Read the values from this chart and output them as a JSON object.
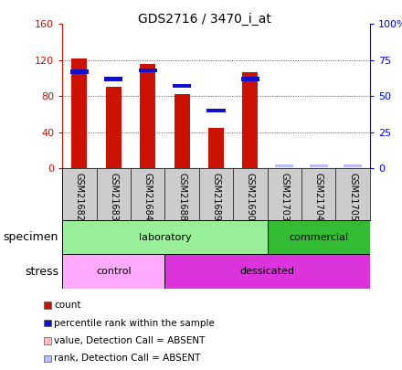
{
  "title": "GDS2716 / 3470_i_at",
  "samples": [
    "GSM21682",
    "GSM21683",
    "GSM21684",
    "GSM21688",
    "GSM21689",
    "GSM21690",
    "GSM21703",
    "GSM21704",
    "GSM21705"
  ],
  "count_values": [
    122,
    90,
    116,
    82,
    45,
    107,
    0,
    0,
    0
  ],
  "rank_values": [
    67,
    62,
    68,
    57,
    40,
    62,
    0,
    0,
    0
  ],
  "absent_rank_values": [
    0,
    0,
    0,
    0,
    0,
    0,
    2,
    2,
    2
  ],
  "bar_width": 0.45,
  "ylim_left": [
    0,
    160
  ],
  "ylim_right": [
    0,
    100
  ],
  "yticks_left": [
    0,
    40,
    80,
    120,
    160
  ],
  "yticks_right": [
    0,
    25,
    50,
    75,
    100
  ],
  "ytick_labels_right": [
    "0",
    "25",
    "50",
    "75",
    "100%"
  ],
  "count_color": "#cc1100",
  "rank_color": "#1111cc",
  "absent_value_color": "#ffbbbb",
  "absent_rank_color": "#bbbbff",
  "specimen_groups": [
    {
      "label": "laboratory",
      "start": 0,
      "end": 6,
      "color": "#99ee99"
    },
    {
      "label": "commercial",
      "start": 6,
      "end": 9,
      "color": "#33bb33"
    }
  ],
  "stress_groups": [
    {
      "label": "control",
      "start": 0,
      "end": 3,
      "color": "#ffaaff"
    },
    {
      "label": "dessicated",
      "start": 3,
      "end": 9,
      "color": "#dd33dd"
    }
  ],
  "grid_color": "#555555",
  "bg_color": "#ffffff",
  "tick_bg_color": "#cccccc",
  "specimen_label": "specimen",
  "stress_label": "stress",
  "legend_items": [
    [
      "#cc1100",
      "count"
    ],
    [
      "#1111cc",
      "percentile rank within the sample"
    ],
    [
      "#ffbbbb",
      "value, Detection Call = ABSENT"
    ],
    [
      "#bbbbff",
      "rank, Detection Call = ABSENT"
    ]
  ]
}
